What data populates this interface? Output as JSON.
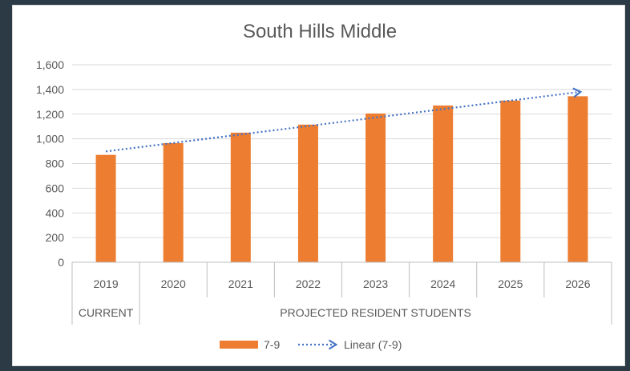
{
  "chart_data": {
    "type": "bar",
    "title": "South Hills Middle",
    "categories": [
      "2019",
      "2020",
      "2021",
      "2022",
      "2023",
      "2024",
      "2025",
      "2026"
    ],
    "groups": [
      {
        "label": "CURRENT",
        "categories": [
          "2019"
        ]
      },
      {
        "label": "PROJECTED RESIDENT STUDENTS",
        "categories": [
          "2020",
          "2021",
          "2022",
          "2023",
          "2024",
          "2025",
          "2026"
        ]
      }
    ],
    "series": [
      {
        "name": "7-9",
        "values": [
          870,
          965,
          1050,
          1115,
          1205,
          1270,
          1310,
          1345
        ],
        "color": "#ed7d31"
      }
    ],
    "trendline": {
      "name": "Linear (7-9)",
      "type": "linear",
      "start": 898,
      "end": 1378,
      "color": "#4472c4",
      "style": "dotted",
      "arrow": true
    },
    "yticks": [
      "0",
      "200",
      "400",
      "600",
      "800",
      "1,000",
      "1,200",
      "1,400",
      "1,600"
    ],
    "ylim": [
      0,
      1600
    ],
    "grid": true,
    "legend": "bottom"
  }
}
